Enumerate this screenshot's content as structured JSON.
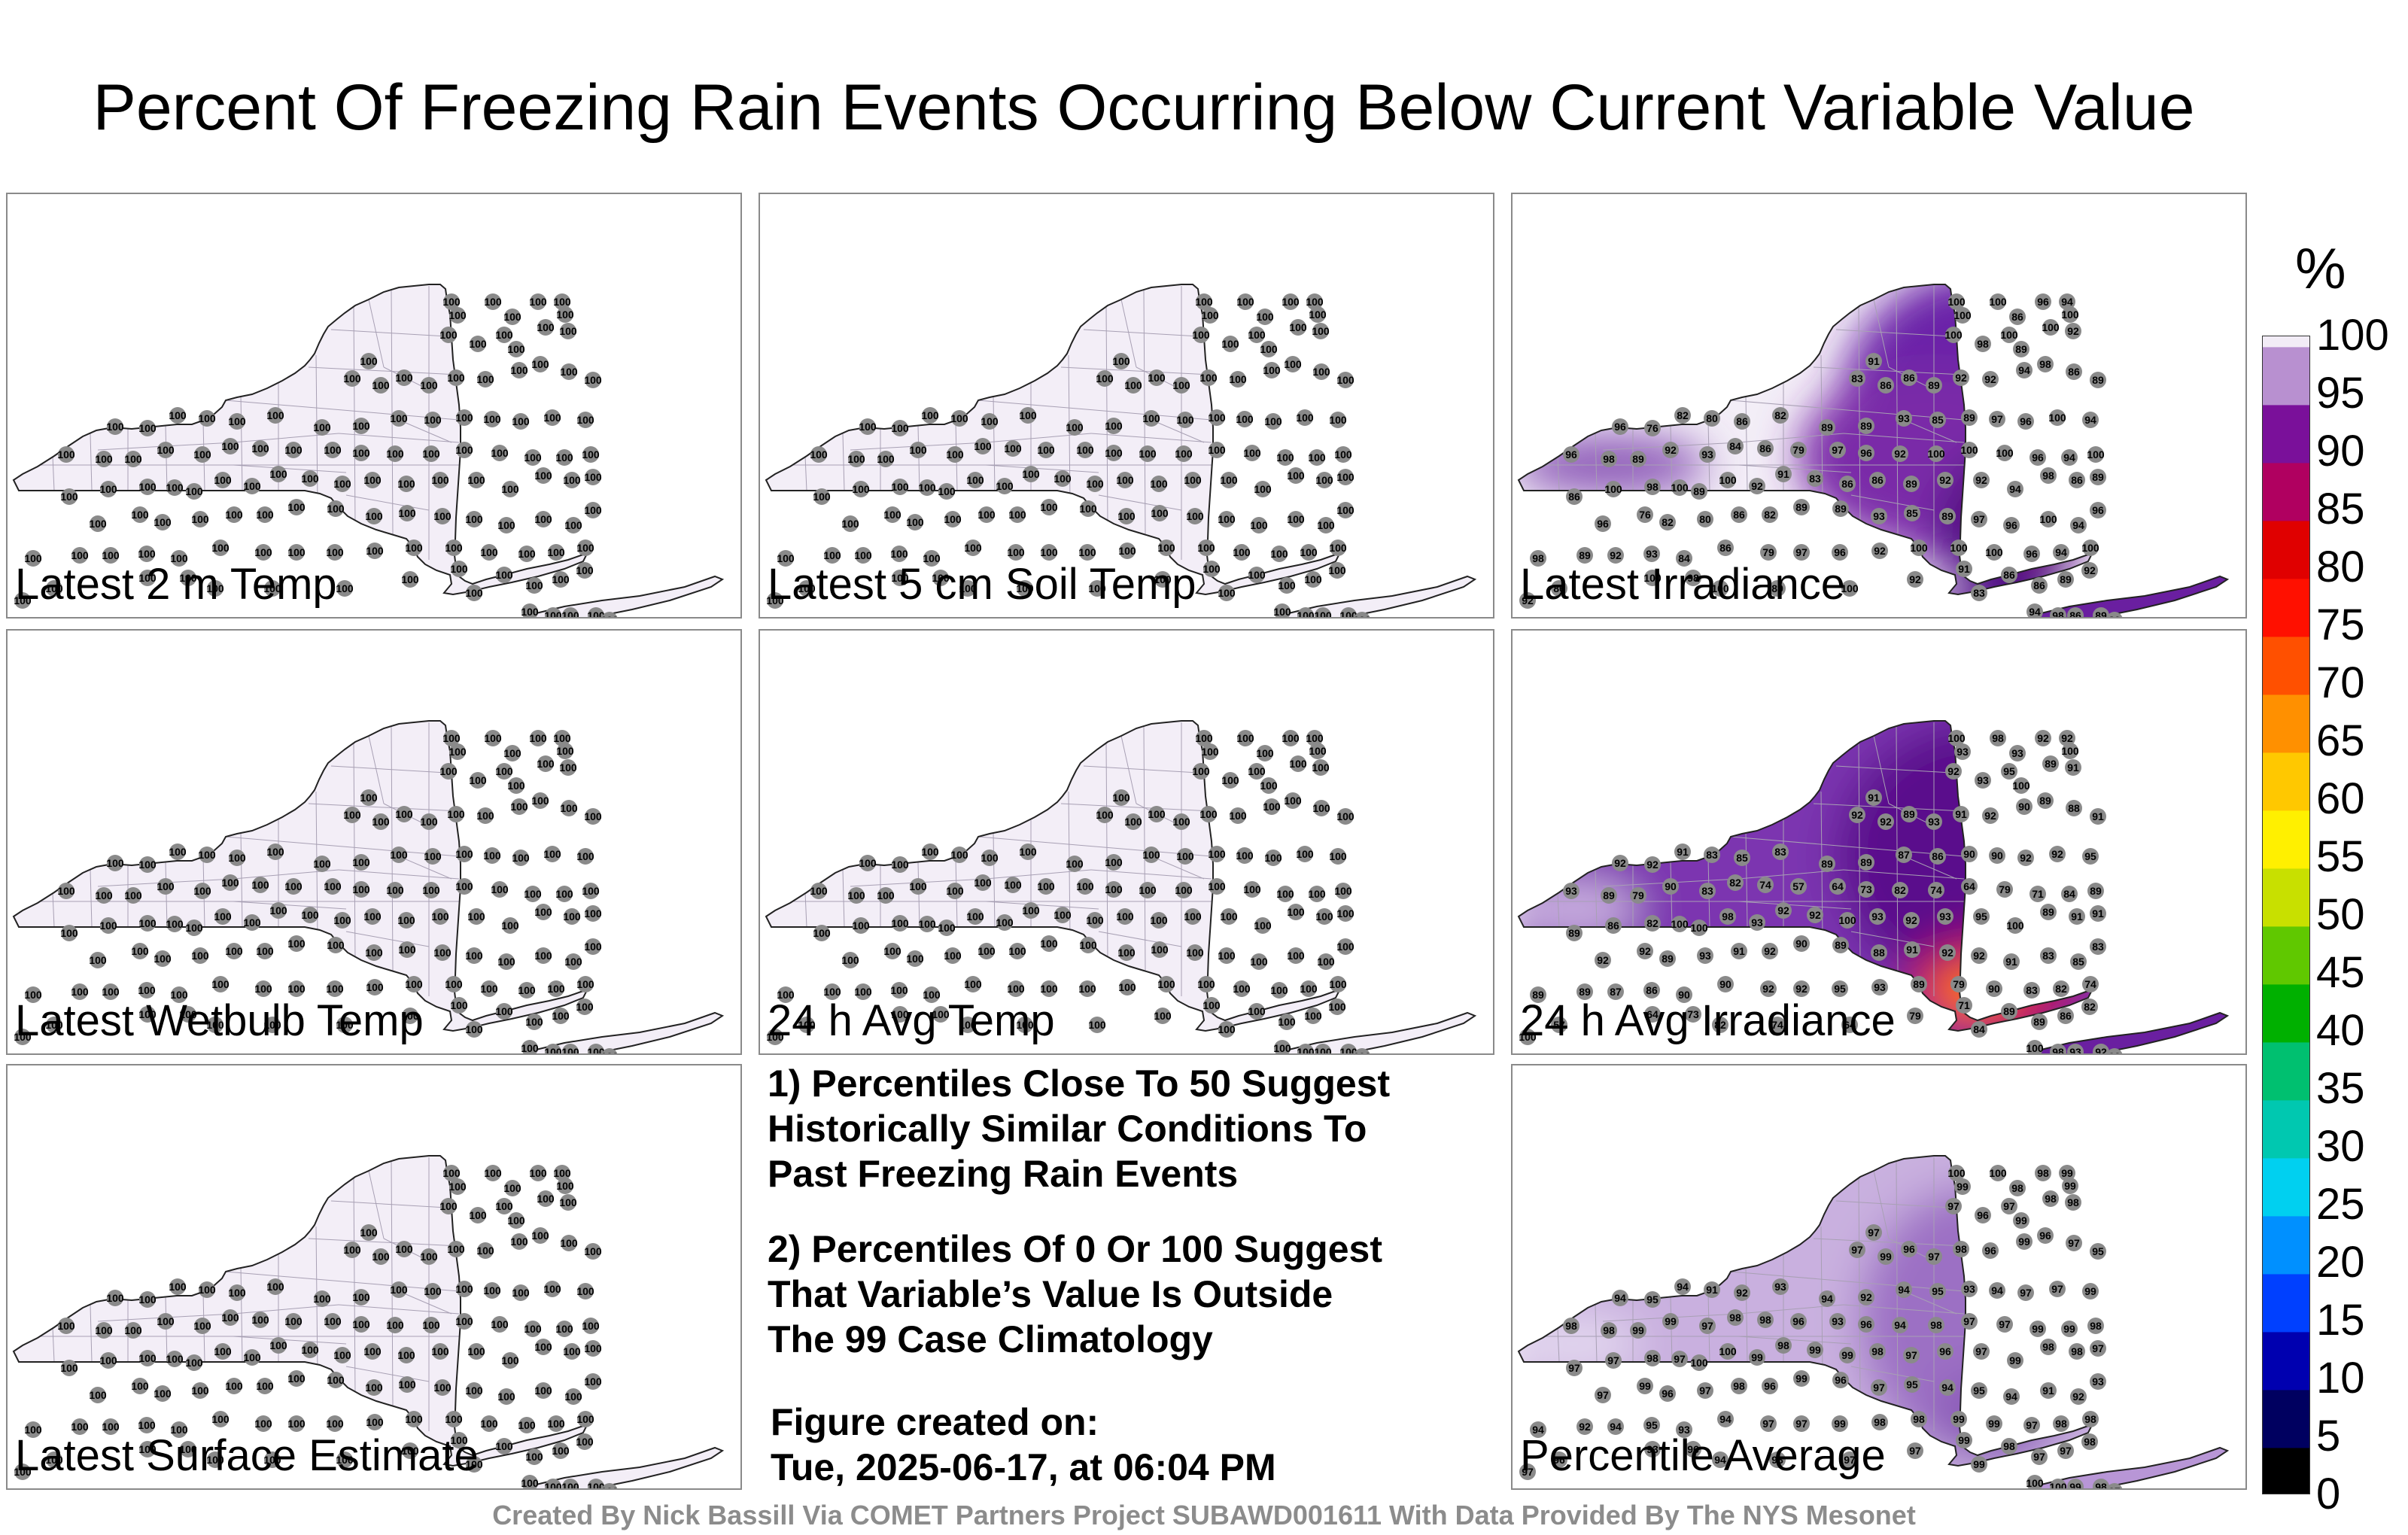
{
  "title": "Percent Of Freezing Rain Events Occurring Below Current Variable Value",
  "panels": [
    {
      "id": "p1",
      "label": "Latest 2 m Temp",
      "style": "uniform",
      "default_value": "100"
    },
    {
      "id": "p2",
      "label": "Latest 5 cm Soil Temp",
      "style": "uniform",
      "default_value": "100"
    },
    {
      "id": "p3",
      "label": "Latest Irradiance",
      "style": "irradiance"
    },
    {
      "id": "p4",
      "label": "Latest Wetbulb Temp",
      "style": "uniform",
      "default_value": "100"
    },
    {
      "id": "p5",
      "label": "24 h Avg Temp",
      "style": "uniform",
      "default_value": "100"
    },
    {
      "id": "p6",
      "label": "24 h Avg Irradiance",
      "style": "avg_irradiance"
    },
    {
      "id": "p7",
      "label": "Latest Surface Estimate",
      "style": "uniform",
      "default_value": "100"
    },
    {
      "id": "p9",
      "label": "Percentile Average",
      "style": "average"
    }
  ],
  "station_values": {
    "irradiance": [
      "100",
      "100",
      "100",
      "96",
      "94",
      "100",
      "86",
      "100",
      "98",
      "100",
      "89",
      "100",
      "92",
      "91",
      "83",
      "86",
      "86",
      "89",
      "92",
      "92",
      "94",
      "98",
      "86",
      "89",
      "96",
      "76",
      "82",
      "80",
      "86",
      "82",
      "89",
      "89",
      "93",
      "85",
      "89",
      "97",
      "96",
      "100",
      "94",
      "96",
      "98",
      "89",
      "92",
      "93",
      "84",
      "86",
      "79",
      "97",
      "96",
      "92"
    ],
    "avg_irradiance": [
      "100",
      "98",
      "93",
      "92",
      "92",
      "100",
      "93",
      "92",
      "93",
      "95",
      "100",
      "89",
      "91",
      "91",
      "92",
      "92",
      "89",
      "93",
      "91",
      "92",
      "90",
      "89",
      "88",
      "91",
      "92",
      "92",
      "91",
      "83",
      "85",
      "83",
      "89",
      "89",
      "87",
      "86",
      "90",
      "90",
      "92",
      "92",
      "95",
      "93",
      "89",
      "79",
      "90",
      "83",
      "82",
      "74",
      "57",
      "64",
      "73",
      "82",
      "74",
      "64",
      "79",
      "71",
      "84",
      "89",
      "89",
      "86",
      "82",
      "100"
    ],
    "average": [
      "100",
      "100",
      "99",
      "98",
      "99",
      "99",
      "98",
      "97",
      "96",
      "97",
      "99",
      "98",
      "98",
      "97",
      "97",
      "99",
      "96",
      "97",
      "98",
      "96",
      "99",
      "96",
      "97",
      "95",
      "94",
      "95",
      "94",
      "91",
      "92",
      "93",
      "94",
      "92",
      "94",
      "95",
      "93",
      "94",
      "97",
      "97",
      "99",
      "98",
      "98",
      "99",
      "99",
      "97",
      "98",
      "98",
      "96",
      "93",
      "96",
      "94",
      "98",
      "97",
      "97",
      "99",
      "99",
      "98",
      "97",
      "97",
      "98",
      "97"
    ]
  },
  "notes": {
    "note1": [
      "1) Percentiles Close To 50 Suggest",
      "Historically Similar Conditions To",
      "Past Freezing Rain Events"
    ],
    "note2": [
      "2) Percentiles Of 0 Or 100 Suggest",
      "That Variable’s Value Is Outside",
      "The 99 Case Climatology"
    ],
    "created": [
      "Figure created on:",
      "Tue, 2025-06-17, at 06:04 PM"
    ]
  },
  "footer": "Created By Nick Bassill Via COMET Partners Project SUBAWD001611 With Data Provided By The NYS Mesonet",
  "colorbar": {
    "unit": "%",
    "ticks": [
      "100",
      "95",
      "90",
      "85",
      "80",
      "75",
      "70",
      "65",
      "60",
      "55",
      "50",
      "45",
      "40",
      "35",
      "30",
      "25",
      "20",
      "15",
      "10",
      "5",
      "0"
    ],
    "colors": {
      "0": "#000000",
      "5": "#000060",
      "10": "#0000b0",
      "15": "#0040ff",
      "20": "#0090ff",
      "25": "#00d0f0",
      "30": "#00c8b0",
      "35": "#00c070",
      "40": "#00b000",
      "45": "#60c800",
      "50": "#c8e000",
      "55": "#fff000",
      "60": "#ffc800",
      "65": "#ff9000",
      "70": "#ff5000",
      "75": "#ff1000",
      "80": "#e00000",
      "85": "#b00060",
      "90": "#7a109a",
      "95": "#b890d0",
      "100": "#f2ecf6"
    }
  },
  "colors": {
    "land_base": "#f3eef7",
    "land_purple": "#9b6fc0",
    "deep_purple": "#5a0f8c",
    "station_marker": "#8a8a8a",
    "frame": "#8a8a8a"
  }
}
